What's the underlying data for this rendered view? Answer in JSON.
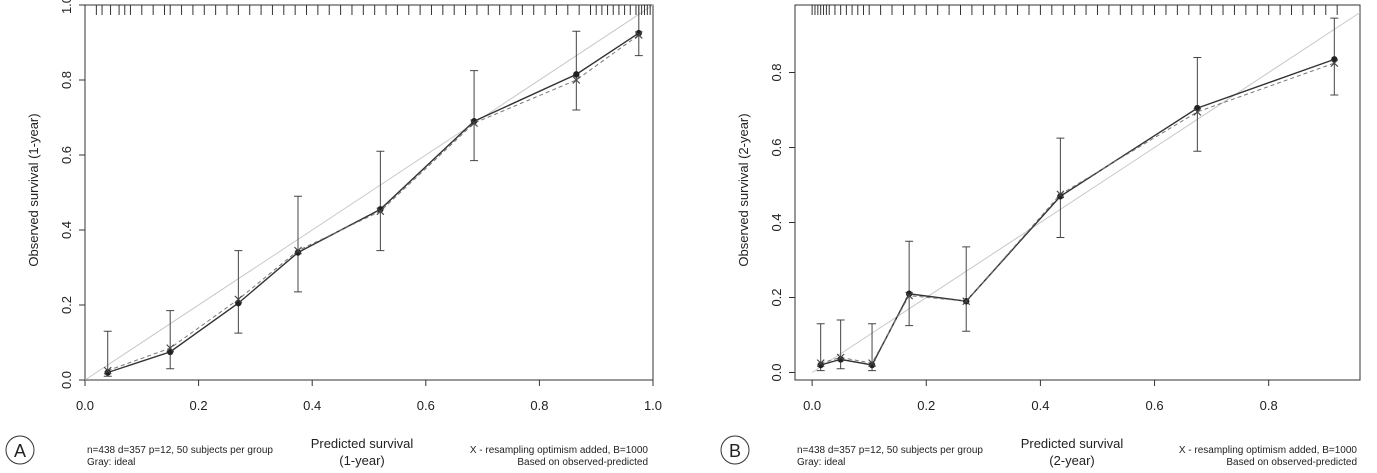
{
  "chart_data": [
    {
      "type": "line",
      "panel_label": "A",
      "xlabel": "Predicted survival",
      "xlabel_sub": "(1-year)",
      "ylabel": "Observed survival (1-year)",
      "xlim": [
        0.0,
        1.0
      ],
      "ylim": [
        0.0,
        1.0
      ],
      "xticks": [
        "0.0",
        "0.2",
        "0.4",
        "0.6",
        "0.8",
        "1.0"
      ],
      "yticks": [
        "0.0",
        "0.2",
        "0.4",
        "0.6",
        "0.8",
        "1.0"
      ],
      "note_left": [
        "n=438 d=357 p=12, 50 subjects per group",
        "Gray: ideal"
      ],
      "note_right": [
        "X - resampling optimism added, B=1000",
        "Based on observed-predicted"
      ],
      "ideal_line": {
        "color": "#c8c8c8",
        "from": [
          0,
          0
        ],
        "to": [
          1,
          1
        ]
      },
      "series": [
        {
          "type": "observed",
          "x": [
            0.04,
            0.15,
            0.27,
            0.375,
            0.52,
            0.685,
            0.865,
            0.975
          ],
          "y": [
            0.02,
            0.075,
            0.205,
            0.34,
            0.455,
            0.69,
            0.815,
            0.925
          ],
          "ci_low": [
            0.01,
            0.03,
            0.125,
            0.235,
            0.345,
            0.585,
            0.72,
            0.865
          ],
          "ci_high": [
            0.13,
            0.185,
            0.345,
            0.49,
            0.61,
            0.825,
            0.93,
            1.0
          ]
        },
        {
          "type": "optimism-corrected",
          "x": [
            0.04,
            0.15,
            0.27,
            0.375,
            0.52,
            0.685,
            0.865,
            0.975
          ],
          "y": [
            0.025,
            0.085,
            0.215,
            0.345,
            0.45,
            0.685,
            0.8,
            0.92
          ]
        }
      ],
      "rug": [
        0.02,
        0.03,
        0.045,
        0.06,
        0.07,
        0.08,
        0.1,
        0.12,
        0.14,
        0.15,
        0.17,
        0.19,
        0.21,
        0.23,
        0.25,
        0.27,
        0.29,
        0.31,
        0.33,
        0.35,
        0.37,
        0.39,
        0.41,
        0.43,
        0.45,
        0.47,
        0.49,
        0.51,
        0.53,
        0.55,
        0.57,
        0.59,
        0.61,
        0.63,
        0.65,
        0.67,
        0.69,
        0.71,
        0.73,
        0.75,
        0.77,
        0.79,
        0.81,
        0.83,
        0.85,
        0.87,
        0.89,
        0.9,
        0.91,
        0.92,
        0.93,
        0.94,
        0.95,
        0.96,
        0.97,
        0.975,
        0.98,
        0.985,
        0.99,
        0.995
      ]
    },
    {
      "type": "line",
      "panel_label": "B",
      "xlabel": "Predicted survival",
      "xlabel_sub": "(2-year)",
      "ylabel": "Observed survival (2-year)",
      "xlim": [
        -0.03,
        0.96
      ],
      "ylim": [
        -0.02,
        0.98
      ],
      "xticks": [
        "0.0",
        "0.2",
        "0.4",
        "0.6",
        "0.8"
      ],
      "yticks": [
        "0.0",
        "0.2",
        "0.4",
        "0.6",
        "0.8"
      ],
      "note_left": [
        "n=438 d=357 p=12, 50 subjects per group",
        "Gray: ideal"
      ],
      "note_right": [
        "X - resampling optimism added, B=1000",
        "Based on observed-predicted"
      ],
      "ideal_line": {
        "color": "#c8c8c8",
        "from": [
          0,
          0
        ],
        "to": [
          0.96,
          0.96
        ]
      },
      "series": [
        {
          "type": "observed",
          "x": [
            0.015,
            0.05,
            0.105,
            0.17,
            0.27,
            0.435,
            0.675,
            0.915
          ],
          "y": [
            0.02,
            0.035,
            0.02,
            0.21,
            0.19,
            0.47,
            0.705,
            0.835
          ],
          "ci_low": [
            0.005,
            0.01,
            0.005,
            0.125,
            0.11,
            0.36,
            0.59,
            0.74
          ],
          "ci_high": [
            0.13,
            0.14,
            0.13,
            0.35,
            0.335,
            0.625,
            0.84,
            0.945
          ]
        },
        {
          "type": "optimism-corrected",
          "x": [
            0.015,
            0.05,
            0.105,
            0.17,
            0.27,
            0.435,
            0.675,
            0.915
          ],
          "y": [
            0.025,
            0.04,
            0.025,
            0.205,
            0.19,
            0.475,
            0.695,
            0.825
          ]
        }
      ],
      "rug": [
        0.0,
        0.005,
        0.01,
        0.015,
        0.02,
        0.025,
        0.03,
        0.04,
        0.05,
        0.06,
        0.07,
        0.08,
        0.09,
        0.1,
        0.12,
        0.14,
        0.16,
        0.18,
        0.2,
        0.22,
        0.24,
        0.26,
        0.28,
        0.3,
        0.32,
        0.34,
        0.36,
        0.38,
        0.4,
        0.42,
        0.44,
        0.46,
        0.48,
        0.5,
        0.52,
        0.54,
        0.56,
        0.58,
        0.6,
        0.62,
        0.64,
        0.66,
        0.68,
        0.7,
        0.72,
        0.74,
        0.76,
        0.78,
        0.8,
        0.82,
        0.84,
        0.86,
        0.88,
        0.9,
        0.92
      ]
    }
  ]
}
